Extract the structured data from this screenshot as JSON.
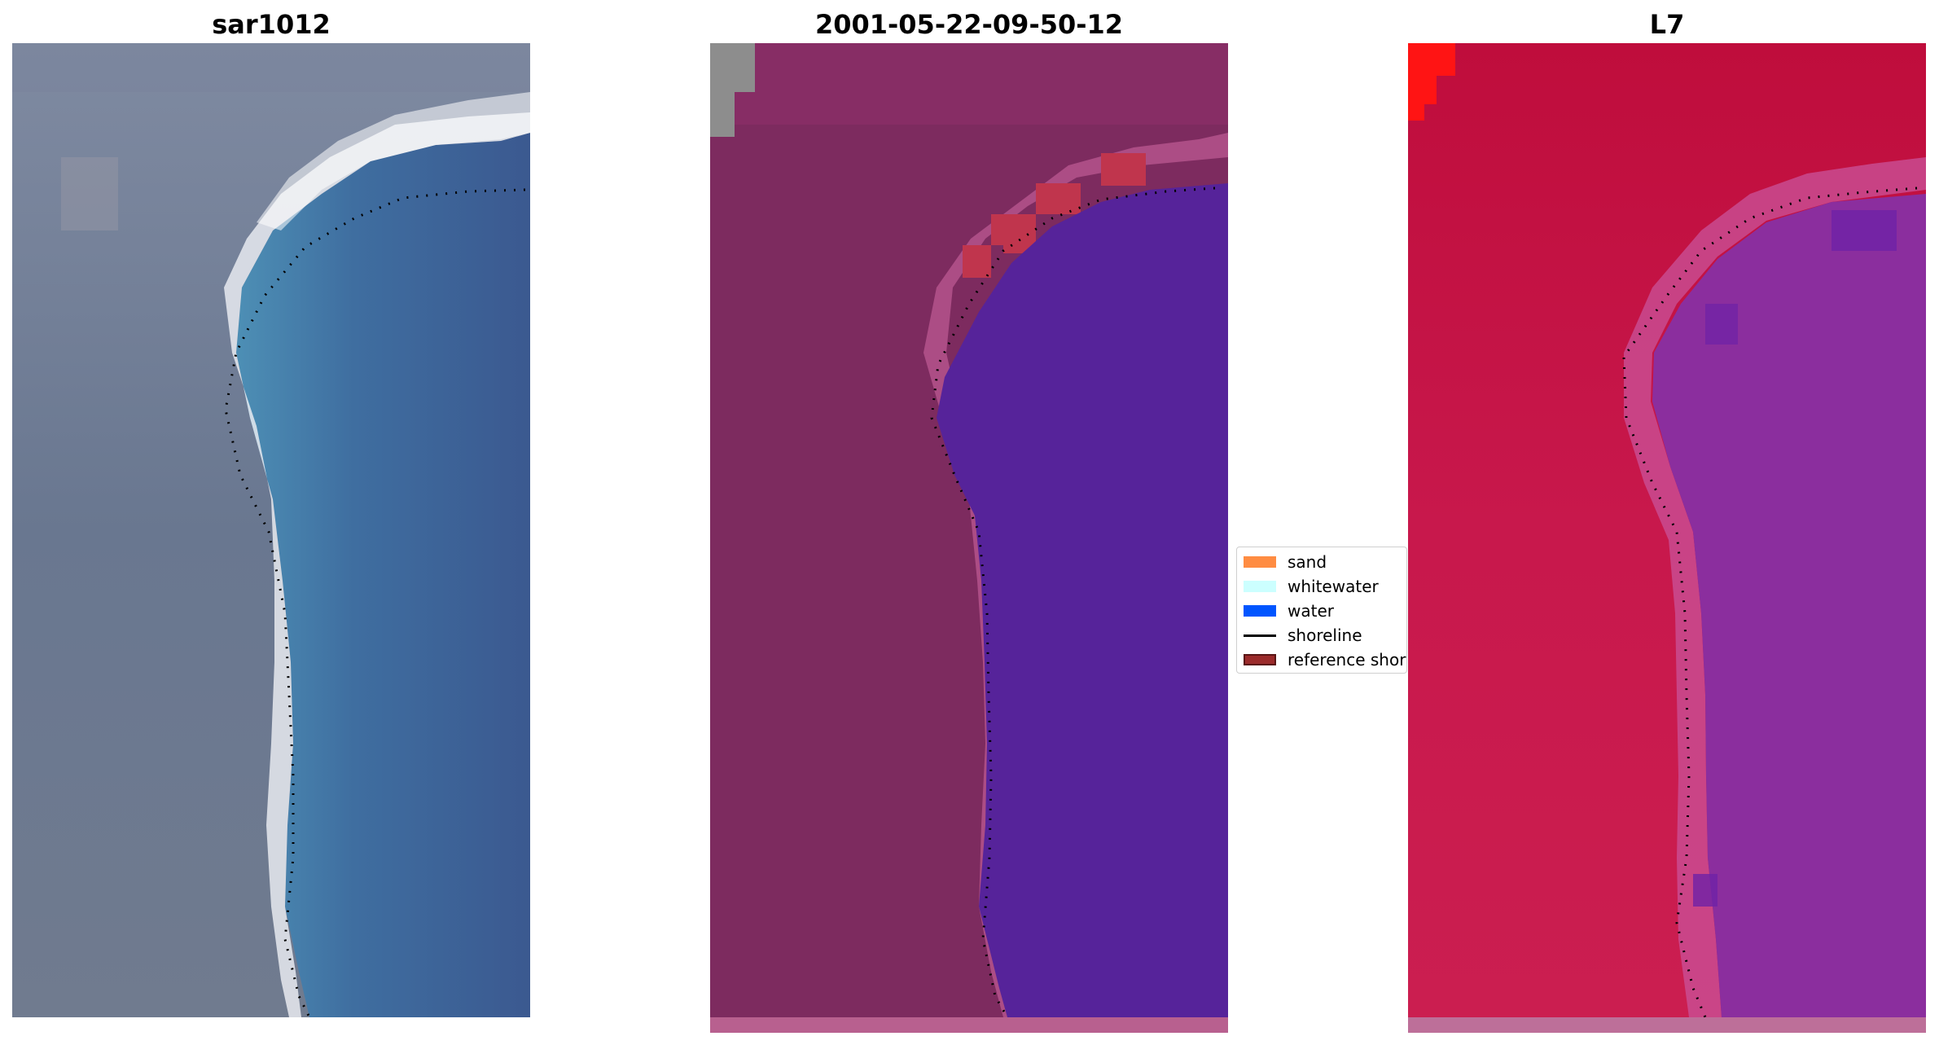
{
  "panels": [
    {
      "title": "sar1012"
    },
    {
      "title": "2001-05-22-09-50-12"
    },
    {
      "title": "L7"
    }
  ],
  "legend": {
    "items": [
      {
        "label": "sand",
        "color": "#ff8c42",
        "kind": "patch"
      },
      {
        "label": "whitewater",
        "color": "#ccffff",
        "kind": "patch"
      },
      {
        "label": "water",
        "color": "#0055ff",
        "kind": "patch"
      },
      {
        "label": "shoreline",
        "color": "#000000",
        "kind": "line"
      },
      {
        "label": "reference shoreline",
        "color": "#9b2b2b",
        "kind": "patch"
      }
    ]
  },
  "colors": {
    "rgb_land": "#6f7990",
    "rgb_water": "#3f5f93",
    "classified_land": "#7d2b5f",
    "classified_water": "#56239a",
    "nir_land": "#c8184c",
    "nir_water": "#8b2e9e",
    "shoreline": "#000000"
  }
}
